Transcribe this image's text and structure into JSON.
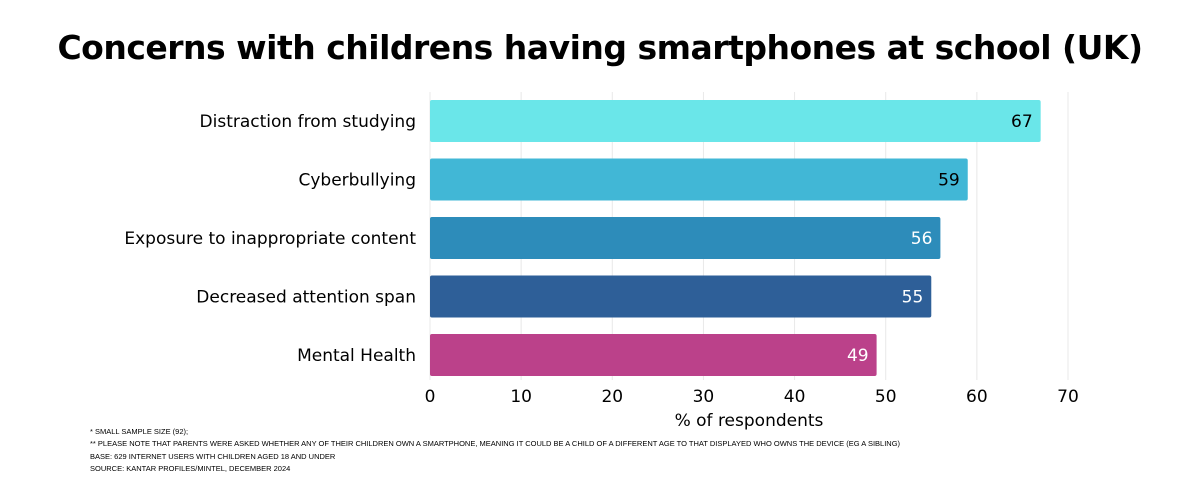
{
  "chart_data": {
    "type": "bar",
    "orientation": "horizontal",
    "title": "Concerns with childrens having smartphones at school (UK)",
    "categories": [
      "Distraction from studying",
      "Cyberbullying",
      "Exposure to inappropriate content",
      "Decreased attention span",
      "Mental Health"
    ],
    "values": [
      67,
      59,
      56,
      55,
      49
    ],
    "colors": [
      "#6ae6e9",
      "#41b7d6",
      "#2d8cba",
      "#2e5f98",
      "#bb418a"
    ],
    "label_colors": [
      "#000000",
      "#000000",
      "#ffffff",
      "#ffffff",
      "#ffffff"
    ],
    "xlabel": "% of respondents",
    "xlim": [
      0,
      70
    ],
    "xticks": [
      0,
      10,
      20,
      30,
      40,
      50,
      60,
      70
    ],
    "grid": true
  },
  "footnotes": [
    " * SMALL SAMPLE SIZE (92);",
    "** PLEASE NOTE THAT PARENTS WERE ASKED WHETHER ANY OF THEIR CHILDREN OWN A SMARTPHONE, MEANING IT COULD BE A CHILD OF A DIFFERENT AGE TO THAT DISPLAYED WHO OWNS THE DEVICE (EG A SIBLING)",
    "BASE: 629 INTERNET USERS WITH CHILDREN AGED 18 AND UNDER",
    "SOURCE: KANTAR PROFILES/MINTEL, DECEMBER 2024"
  ]
}
